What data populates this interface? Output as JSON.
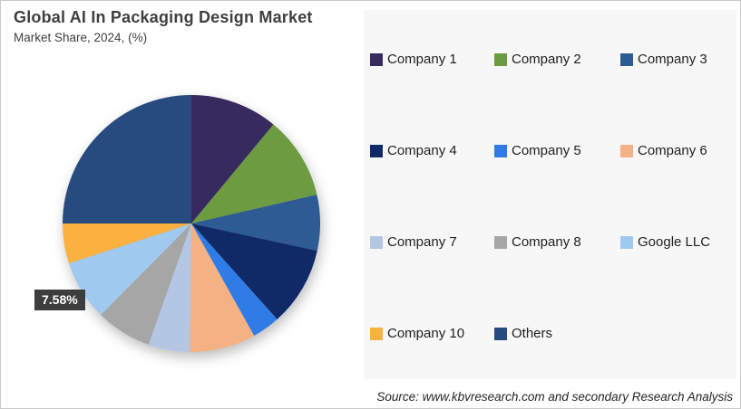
{
  "chart_data": {
    "type": "pie",
    "title": "Global AI In Packaging Design Market",
    "subtitle": "Market Share, 2024, (%)",
    "unit": "%",
    "legend_position": "right",
    "start_angle_deg": 0,
    "direction": "clockwise",
    "segments": [
      {
        "label": "Company 1",
        "value": 11.0,
        "color": "#362a5e"
      },
      {
        "label": "Company 2",
        "value": 10.4,
        "color": "#6d9b41"
      },
      {
        "label": "Company 3",
        "value": 7.0,
        "color": "#2f5b94"
      },
      {
        "label": "Company 4",
        "value": 10.0,
        "color": "#0f2a66"
      },
      {
        "label": "Company 5",
        "value": 3.5,
        "color": "#2f7ce6"
      },
      {
        "label": "Company 6",
        "value": 8.3,
        "color": "#f4b183"
      },
      {
        "label": "Company 7",
        "value": 5.2,
        "color": "#b3c6e4"
      },
      {
        "label": "Company 8",
        "value": 7.0,
        "color": "#a6a6a6"
      },
      {
        "label": "Google LLC",
        "value": 7.58,
        "color": "#9fc9ef"
      },
      {
        "label": "Company 10",
        "value": 5.02,
        "color": "#fbb03f"
      },
      {
        "label": "Others",
        "value": 25.0,
        "color": "#274b7e"
      }
    ],
    "data_labels": [
      {
        "segment": "Google LLC",
        "text": "7.58%"
      }
    ]
  },
  "annotation": {
    "share_label": "7.58%"
  },
  "footer": {
    "source": "Source: www.kbvresearch.com and secondary Research Analysis"
  }
}
